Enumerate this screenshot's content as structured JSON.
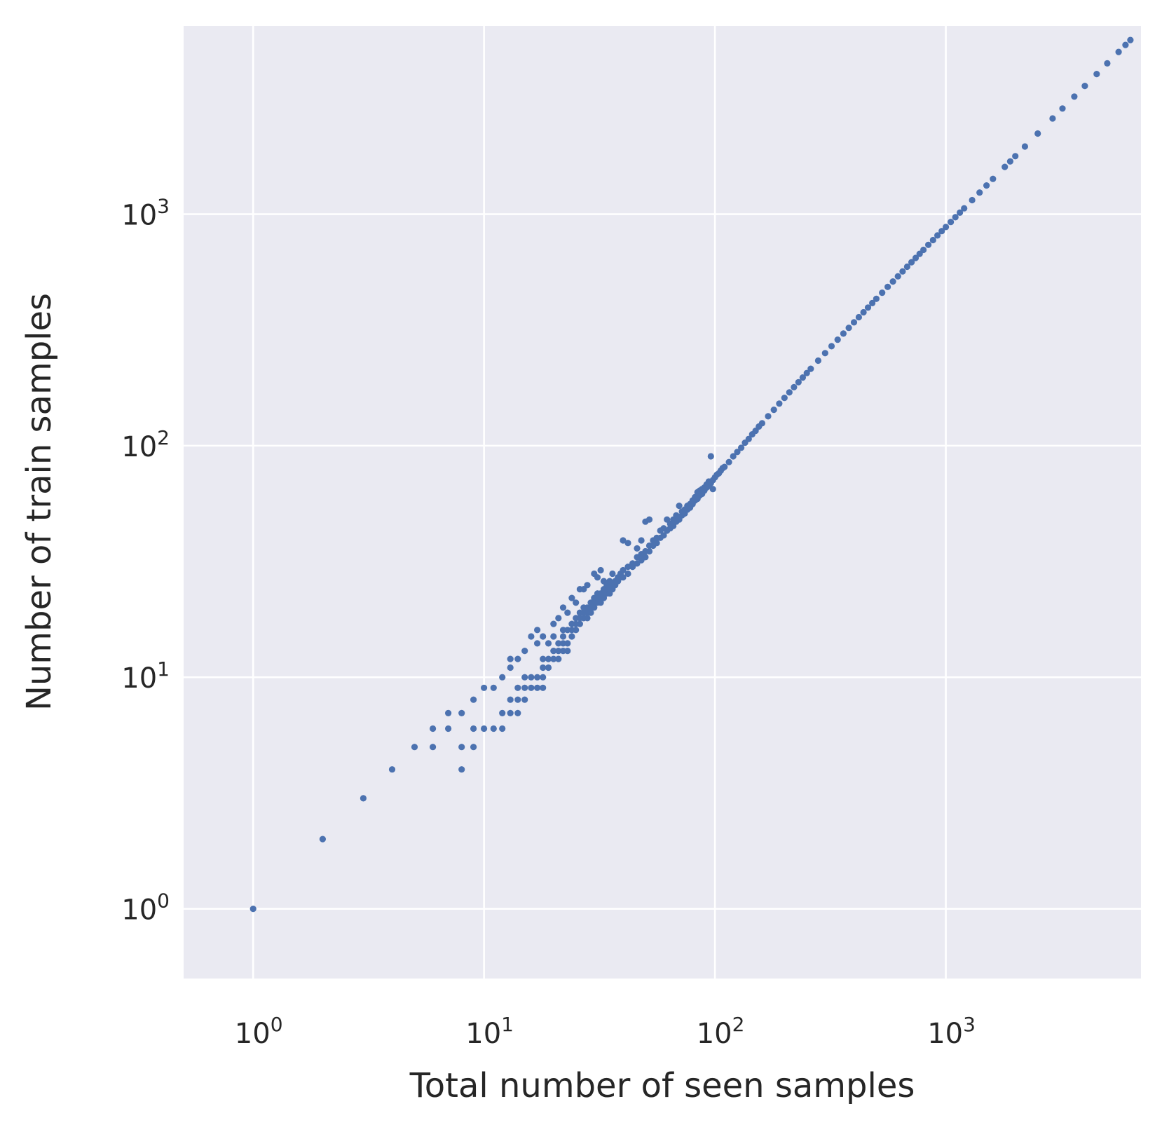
{
  "chart_data": {
    "type": "scatter",
    "title": "",
    "xlabel": "Total number of seen samples",
    "ylabel": "Number of train samples",
    "xscale": "log",
    "yscale": "log",
    "xlim": [
      0.5,
      7000
    ],
    "ylim": [
      0.5,
      6500
    ],
    "grid": true,
    "legend": "none",
    "colors": {
      "background": "#eaeaf2",
      "grid": "#ffffff",
      "marker": "#4c72b0",
      "text": "#262626"
    },
    "xticks": [
      {
        "base": "10",
        "exp": "0",
        "value": 1
      },
      {
        "base": "10",
        "exp": "1",
        "value": 10
      },
      {
        "base": "10",
        "exp": "2",
        "value": 100
      },
      {
        "base": "10",
        "exp": "3",
        "value": 1000
      }
    ],
    "yticks": [
      {
        "base": "10",
        "exp": "0",
        "value": 1
      },
      {
        "base": "10",
        "exp": "1",
        "value": 10
      },
      {
        "base": "10",
        "exp": "2",
        "value": 100
      },
      {
        "base": "10",
        "exp": "3",
        "value": 1000
      }
    ],
    "points": [
      [
        1,
        1
      ],
      [
        2,
        2
      ],
      [
        3,
        3
      ],
      [
        4,
        4
      ],
      [
        5,
        5
      ],
      [
        6,
        5
      ],
      [
        6,
        6
      ],
      [
        7,
        6
      ],
      [
        7,
        7
      ],
      [
        8,
        4
      ],
      [
        8,
        5
      ],
      [
        8,
        7
      ],
      [
        9,
        5
      ],
      [
        9,
        6
      ],
      [
        9,
        8
      ],
      [
        10,
        6
      ],
      [
        10,
        9
      ],
      [
        11,
        6
      ],
      [
        11,
        9
      ],
      [
        12,
        6
      ],
      [
        12,
        7
      ],
      [
        12,
        10
      ],
      [
        13,
        7
      ],
      [
        13,
        8
      ],
      [
        13,
        11
      ],
      [
        13,
        12
      ],
      [
        14,
        7
      ],
      [
        14,
        8
      ],
      [
        14,
        9
      ],
      [
        14,
        12
      ],
      [
        15,
        8
      ],
      [
        15,
        9
      ],
      [
        15,
        10
      ],
      [
        15,
        13
      ],
      [
        16,
        9
      ],
      [
        16,
        10
      ],
      [
        16,
        15
      ],
      [
        17,
        9
      ],
      [
        17,
        10
      ],
      [
        17,
        14
      ],
      [
        17,
        16
      ],
      [
        18,
        9
      ],
      [
        18,
        10
      ],
      [
        18,
        11
      ],
      [
        18,
        12
      ],
      [
        18,
        15
      ],
      [
        19,
        11
      ],
      [
        19,
        12
      ],
      [
        19,
        14
      ],
      [
        20,
        12
      ],
      [
        20,
        13
      ],
      [
        20,
        15
      ],
      [
        20,
        17
      ],
      [
        21,
        12
      ],
      [
        21,
        13
      ],
      [
        21,
        14
      ],
      [
        21,
        18
      ],
      [
        22,
        13
      ],
      [
        22,
        14
      ],
      [
        22,
        15
      ],
      [
        22,
        16
      ],
      [
        22,
        20
      ],
      [
        23,
        13
      ],
      [
        23,
        14
      ],
      [
        23,
        16
      ],
      [
        23,
        19
      ],
      [
        24,
        15
      ],
      [
        24,
        16
      ],
      [
        24,
        17
      ],
      [
        24,
        22
      ],
      [
        25,
        16
      ],
      [
        25,
        17
      ],
      [
        25,
        18
      ],
      [
        25,
        21
      ],
      [
        26,
        17
      ],
      [
        26,
        18
      ],
      [
        26,
        19
      ],
      [
        26,
        24
      ],
      [
        27,
        18
      ],
      [
        27,
        19
      ],
      [
        27,
        20
      ],
      [
        27,
        24
      ],
      [
        28,
        18
      ],
      [
        28,
        19
      ],
      [
        28,
        20
      ],
      [
        28,
        25
      ],
      [
        29,
        19
      ],
      [
        29,
        20
      ],
      [
        29,
        21
      ],
      [
        30,
        20
      ],
      [
        30,
        21
      ],
      [
        30,
        22
      ],
      [
        30,
        28
      ],
      [
        31,
        21
      ],
      [
        31,
        22
      ],
      [
        31,
        23
      ],
      [
        31,
        27
      ],
      [
        32,
        21
      ],
      [
        32,
        22
      ],
      [
        32,
        23
      ],
      [
        32,
        29
      ],
      [
        33,
        22
      ],
      [
        33,
        23
      ],
      [
        33,
        24
      ],
      [
        33,
        26
      ],
      [
        34,
        23
      ],
      [
        34,
        24
      ],
      [
        34,
        25
      ],
      [
        35,
        23
      ],
      [
        35,
        24
      ],
      [
        35,
        26
      ],
      [
        36,
        24
      ],
      [
        36,
        25
      ],
      [
        36,
        28
      ],
      [
        37,
        25
      ],
      [
        37,
        26
      ],
      [
        38,
        26
      ],
      [
        38,
        27
      ],
      [
        39,
        27
      ],
      [
        39,
        28
      ],
      [
        40,
        27
      ],
      [
        40,
        29
      ],
      [
        40,
        39
      ],
      [
        42,
        28
      ],
      [
        42,
        30
      ],
      [
        42,
        38
      ],
      [
        44,
        30
      ],
      [
        44,
        31
      ],
      [
        46,
        31
      ],
      [
        46,
        33
      ],
      [
        46,
        36
      ],
      [
        48,
        32
      ],
      [
        48,
        34
      ],
      [
        48,
        39
      ],
      [
        50,
        33
      ],
      [
        50,
        35
      ],
      [
        50,
        47
      ],
      [
        52,
        35
      ],
      [
        52,
        37
      ],
      [
        52,
        48
      ],
      [
        54,
        37
      ],
      [
        54,
        39
      ],
      [
        56,
        38
      ],
      [
        56,
        40
      ],
      [
        58,
        40
      ],
      [
        58,
        43
      ],
      [
        60,
        41
      ],
      [
        60,
        44
      ],
      [
        62,
        43
      ],
      [
        62,
        48
      ],
      [
        64,
        44
      ],
      [
        64,
        46
      ],
      [
        66,
        45
      ],
      [
        66,
        48
      ],
      [
        68,
        47
      ],
      [
        68,
        50
      ],
      [
        70,
        48
      ],
      [
        70,
        55
      ],
      [
        72,
        50
      ],
      [
        72,
        52
      ],
      [
        74,
        51
      ],
      [
        74,
        53
      ],
      [
        76,
        53
      ],
      [
        76,
        55
      ],
      [
        78,
        54
      ],
      [
        78,
        56
      ],
      [
        80,
        56
      ],
      [
        80,
        58
      ],
      [
        82,
        58
      ],
      [
        82,
        60
      ],
      [
        84,
        59
      ],
      [
        84,
        63
      ],
      [
        86,
        61
      ],
      [
        86,
        64
      ],
      [
        88,
        62
      ],
      [
        88,
        65
      ],
      [
        90,
        64
      ],
      [
        90,
        66
      ],
      [
        92,
        66
      ],
      [
        92,
        68
      ],
      [
        94,
        67
      ],
      [
        94,
        70
      ],
      [
        96,
        69
      ],
      [
        96,
        90
      ],
      [
        98,
        71
      ],
      [
        98,
        65
      ],
      [
        100,
        73
      ],
      [
        102,
        75
      ],
      [
        104,
        76
      ],
      [
        106,
        78
      ],
      [
        108,
        80
      ],
      [
        110,
        81
      ],
      [
        115,
        85
      ],
      [
        120,
        90
      ],
      [
        125,
        94
      ],
      [
        130,
        98
      ],
      [
        135,
        103
      ],
      [
        140,
        107
      ],
      [
        145,
        112
      ],
      [
        150,
        116
      ],
      [
        155,
        121
      ],
      [
        160,
        125
      ],
      [
        170,
        134
      ],
      [
        180,
        143
      ],
      [
        190,
        152
      ],
      [
        200,
        161
      ],
      [
        210,
        170
      ],
      [
        220,
        179
      ],
      [
        230,
        188
      ],
      [
        240,
        197
      ],
      [
        250,
        206
      ],
      [
        260,
        215
      ],
      [
        280,
        233
      ],
      [
        300,
        251
      ],
      [
        320,
        269
      ],
      [
        340,
        287
      ],
      [
        360,
        305
      ],
      [
        380,
        323
      ],
      [
        400,
        341
      ],
      [
        420,
        359
      ],
      [
        440,
        377
      ],
      [
        460,
        395
      ],
      [
        480,
        413
      ],
      [
        500,
        431
      ],
      [
        530,
        458
      ],
      [
        560,
        485
      ],
      [
        590,
        512
      ],
      [
        620,
        539
      ],
      [
        650,
        566
      ],
      [
        680,
        593
      ],
      [
        710,
        620
      ],
      [
        740,
        647
      ],
      [
        770,
        674
      ],
      [
        800,
        701
      ],
      [
        840,
        737
      ],
      [
        880,
        773
      ],
      [
        920,
        809
      ],
      [
        960,
        845
      ],
      [
        1000,
        880
      ],
      [
        1050,
        925
      ],
      [
        1100,
        970
      ],
      [
        1150,
        1015
      ],
      [
        1200,
        1060
      ],
      [
        1300,
        1150
      ],
      [
        1400,
        1240
      ],
      [
        1500,
        1330
      ],
      [
        1600,
        1420
      ],
      [
        1800,
        1600
      ],
      [
        1900,
        1690
      ],
      [
        2000,
        1780
      ],
      [
        2200,
        1960
      ],
      [
        2500,
        2230
      ],
      [
        2900,
        2590
      ],
      [
        3200,
        2860
      ],
      [
        3600,
        3220
      ],
      [
        4000,
        3580
      ],
      [
        4500,
        4030
      ],
      [
        5000,
        4480
      ],
      [
        5600,
        5020
      ],
      [
        6000,
        5380
      ],
      [
        6300,
        5650
      ]
    ]
  }
}
